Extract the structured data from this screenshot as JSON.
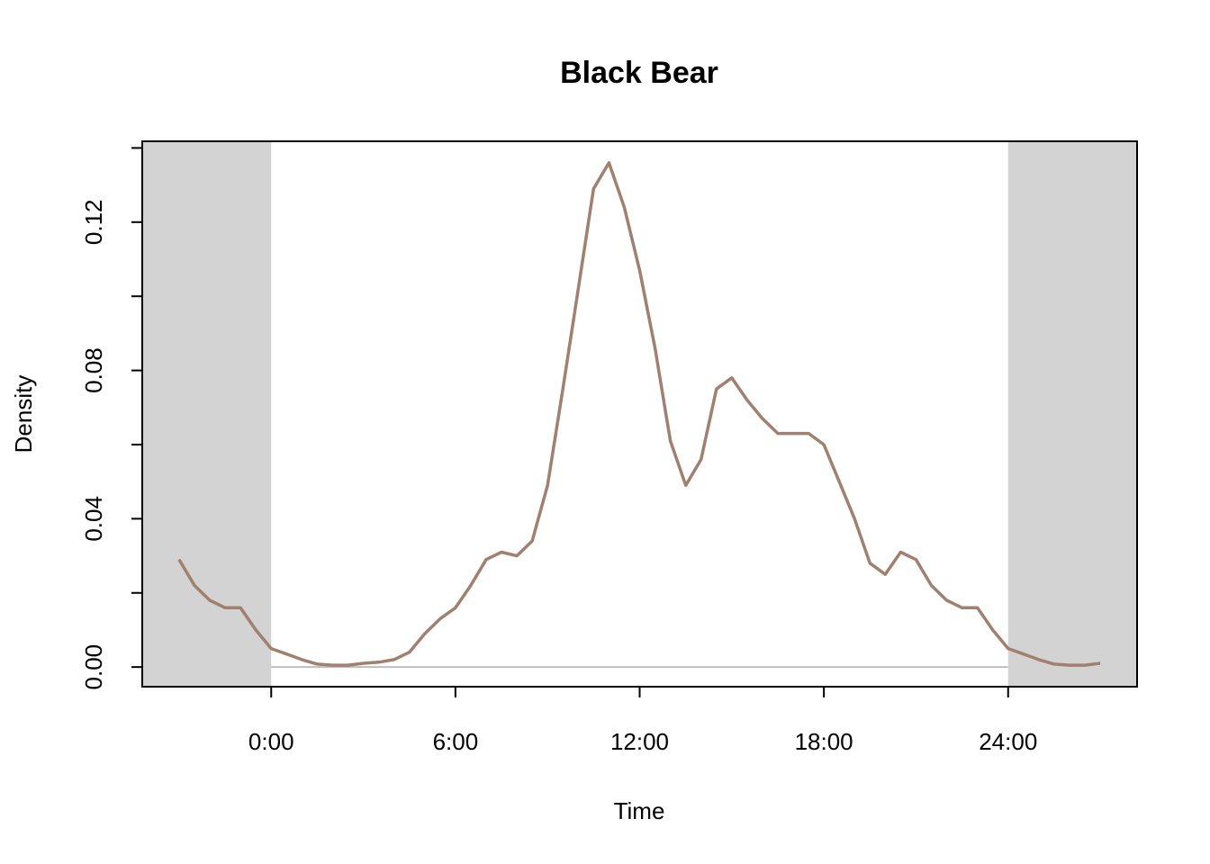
{
  "chart_data": {
    "type": "line",
    "title": "Black Bear",
    "x_label": "Time",
    "y_label": "Density",
    "x": [
      -3,
      -2.5,
      -2,
      -1.5,
      -1,
      -0.5,
      0,
      0.5,
      1,
      1.5,
      2,
      2.5,
      3,
      3.5,
      4,
      4.5,
      5,
      5.5,
      6,
      6.5,
      7,
      7.5,
      8,
      8.5,
      9,
      9.5,
      10,
      10.5,
      11,
      11.5,
      12,
      12.5,
      13,
      13.5,
      14,
      14.5,
      15,
      15.5,
      16,
      16.5,
      17,
      17.5,
      18,
      18.5,
      19,
      19.5,
      20,
      20.5,
      21,
      21.5,
      22,
      22.5,
      23,
      23.5,
      24,
      24.5,
      25,
      25.5,
      26,
      26.5,
      27
    ],
    "series": [
      {
        "color": "#a08070",
        "values": [
          0.029,
          0.022,
          0.018,
          0.016,
          0.016,
          0.01,
          0.005,
          0.0035,
          0.002,
          0.0008,
          0.0005,
          0.0005,
          0.001,
          0.0013,
          0.002,
          0.004,
          0.009,
          0.013,
          0.016,
          0.022,
          0.029,
          0.031,
          0.03,
          0.034,
          0.049,
          0.075,
          0.102,
          0.129,
          0.136,
          0.124,
          0.107,
          0.086,
          0.061,
          0.049,
          0.056,
          0.075,
          0.078,
          0.072,
          0.067,
          0.063,
          0.063,
          0.063,
          0.06,
          0.05,
          0.04,
          0.028,
          0.025,
          0.031,
          0.029,
          0.022,
          0.018,
          0.016,
          0.016,
          0.01,
          0.005,
          0.0035,
          0.002,
          0.0008,
          0.0005,
          0.0005,
          0.001
        ]
      }
    ],
    "xlim": [
      -4.2,
      28.2
    ],
    "ylim": [
      -0.0053,
      0.1418
    ],
    "xticks": [
      {
        "value": 0,
        "label": "0:00"
      },
      {
        "value": 6,
        "label": "6:00"
      },
      {
        "value": 12,
        "label": "12:00"
      },
      {
        "value": 18,
        "label": "18:00"
      },
      {
        "value": 24,
        "label": "24:00"
      }
    ],
    "yticks": [
      {
        "value": 0,
        "label": "0.00"
      },
      {
        "value": 0.02,
        "label": null
      },
      {
        "value": 0.04,
        "label": "0.04"
      },
      {
        "value": 0.06,
        "label": null
      },
      {
        "value": 0.08,
        "label": "0.08"
      },
      {
        "value": 0.1,
        "label": null
      },
      {
        "value": 0.12,
        "label": "0.12"
      },
      {
        "value": 0.14,
        "label": null
      }
    ],
    "shading": {
      "color": "#d3d3d3",
      "ranges": [
        [
          -4.2,
          0
        ],
        [
          24,
          28.2
        ]
      ]
    },
    "baseline": {
      "value": 0,
      "color": "#bebebe"
    }
  }
}
